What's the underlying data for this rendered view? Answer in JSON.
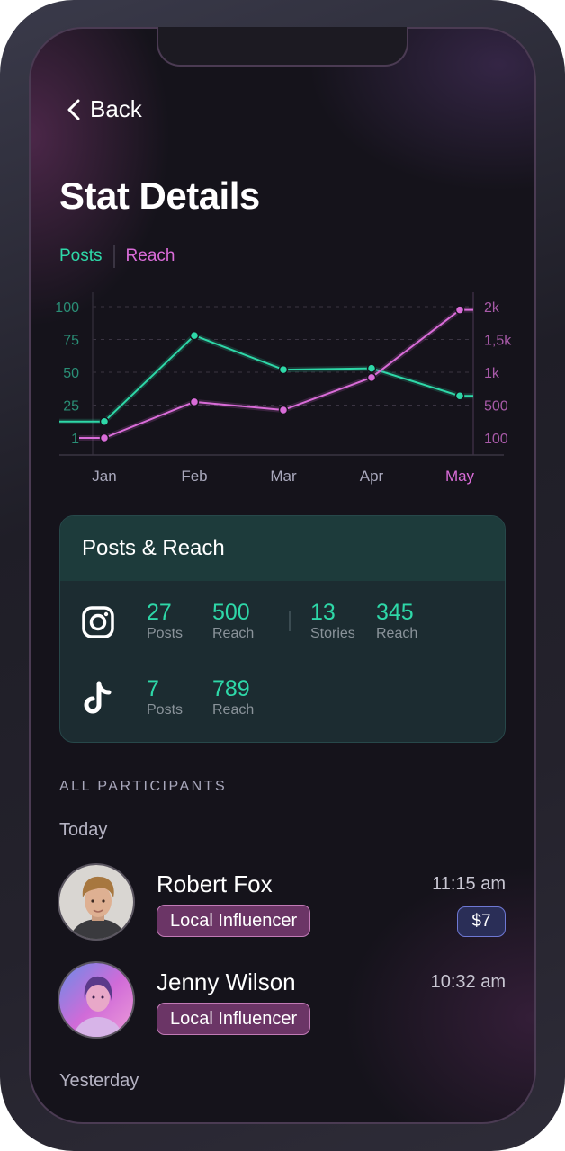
{
  "nav": {
    "back_label": "Back"
  },
  "page": {
    "title": "Stat Details"
  },
  "legend": {
    "posts": "Posts",
    "reach": "Reach"
  },
  "colors": {
    "posts": "#2ed8a8",
    "reach": "#d96cd8",
    "background": "#15131b"
  },
  "chart_data": {
    "type": "line",
    "categories": [
      "Jan",
      "Feb",
      "Mar",
      "Apr",
      "May"
    ],
    "highlighted_category": "May",
    "y_left_ticks": [
      "100",
      "75",
      "50",
      "25",
      "1"
    ],
    "y_right_ticks": [
      "2k",
      "1,5k",
      "1k",
      "500",
      "100"
    ],
    "series": [
      {
        "name": "Posts",
        "axis": "left",
        "values": [
          13,
          78,
          52,
          53,
          32
        ],
        "color": "#2ed8a8"
      },
      {
        "name": "Reach",
        "axis": "right",
        "values": [
          100,
          550,
          440,
          920,
          1950
        ],
        "color": "#d96cd8"
      }
    ],
    "y_left_range": [
      1,
      100
    ],
    "y_right_range": [
      100,
      2000
    ],
    "grid": "dashed-horizontal"
  },
  "card": {
    "title": "Posts & Reach",
    "instagram": {
      "icon": "instagram-icon",
      "stats": [
        {
          "value": "27",
          "label": "Posts"
        },
        {
          "value": "500",
          "label": "Reach"
        },
        {
          "value": "13",
          "label": "Stories"
        },
        {
          "value": "345",
          "label": "Reach"
        }
      ]
    },
    "tiktok": {
      "icon": "tiktok-icon",
      "stats": [
        {
          "value": "7",
          "label": "Posts"
        },
        {
          "value": "789",
          "label": "Reach"
        }
      ]
    }
  },
  "participants": {
    "section_label": "ALL PARTICIPANTS",
    "groups": [
      {
        "label": "Today",
        "items": [
          {
            "name": "Robert Fox",
            "time": "11:15 am",
            "tag": "Local Influencer",
            "amount": "$7"
          },
          {
            "name": "Jenny Wilson",
            "time": "10:32 am",
            "tag": "Local Influencer"
          }
        ]
      },
      {
        "label": "Yesterday",
        "items": []
      }
    ]
  }
}
